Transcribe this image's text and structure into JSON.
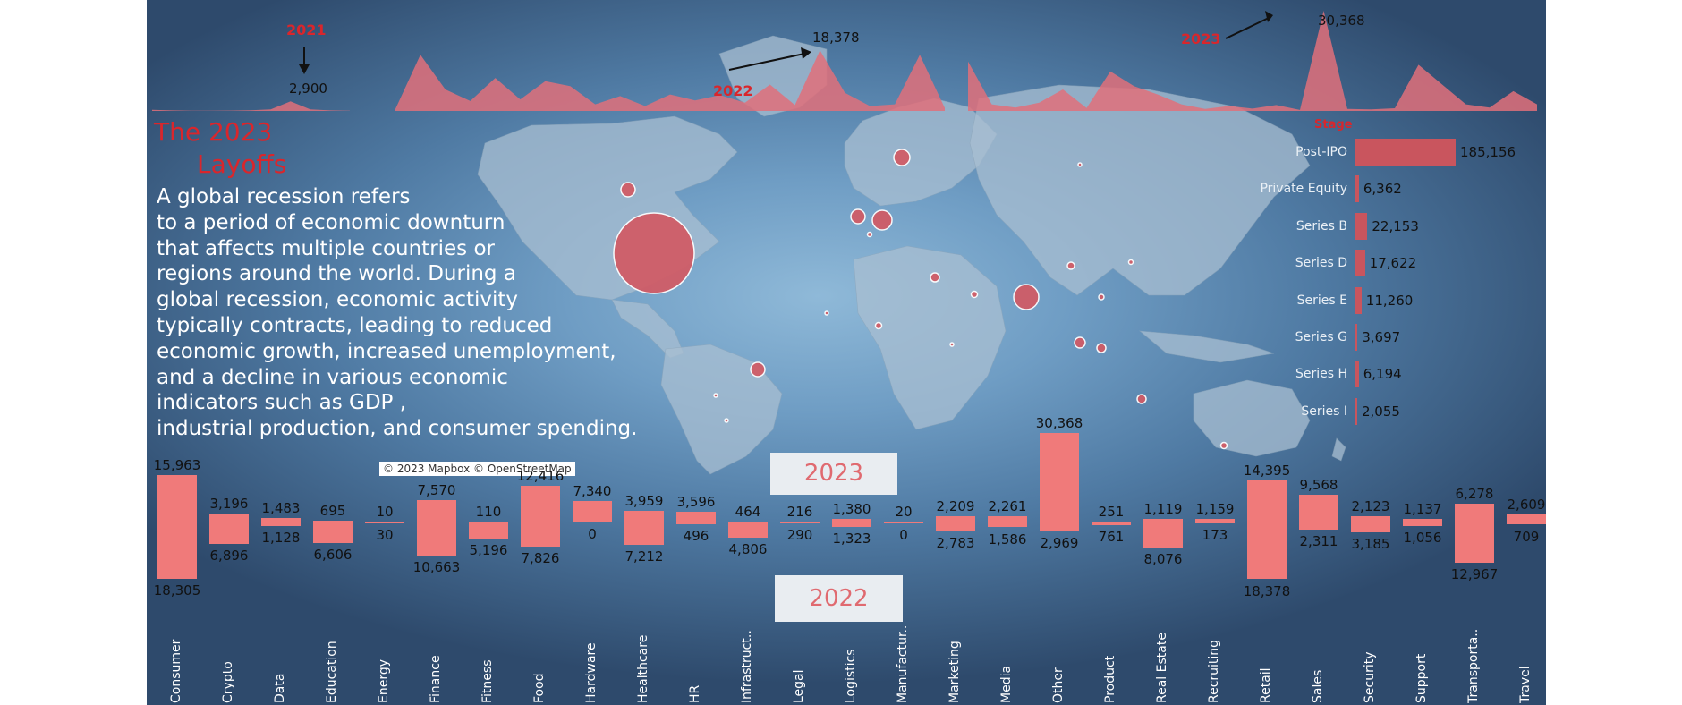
{
  "story": {
    "title_line1": "The 2023",
    "title_line2": "Layoffs",
    "body": "A global recession refers\nto a period of economic downturn\nthat affects multiple countries or\nregions around the world. During a\nglobal recession, economic activity\ntypically contracts, leading to reduced\neconomic growth, increased unemployment,\nand a decline in various economic\nindicators such as GDP ,\nindustrial production, and consumer spending."
  },
  "map": {
    "attribution": "© 2023 Mapbox © OpenStreetMap"
  },
  "timeline": {
    "annotations": {
      "y2021": {
        "year": "2021",
        "peak": "2,900"
      },
      "y2022": {
        "year": "2022",
        "peak": "18,378"
      },
      "y2023": {
        "year": "2023",
        "peak": "30,368"
      }
    }
  },
  "year_boxes": {
    "top": "2023",
    "bottom": "2022"
  },
  "colors": {
    "accent_red": "#d9262c",
    "bar_red": "#f07a7a",
    "stage_bar": "#c9555e",
    "area_fill": "#e0707a"
  },
  "chart_data": [
    {
      "type": "area",
      "segments": [
        {
          "year": "2021",
          "values": [
            350,
            150,
            80,
            60,
            120,
            200,
            450,
            2900,
            500,
            150,
            80
          ]
        },
        {
          "year": "2022",
          "values": [
            600,
            17000,
            6500,
            3000,
            10000,
            3500,
            9000,
            7500,
            2000,
            4500,
            1500,
            5000,
            3200,
            4800,
            2500,
            8000,
            1800,
            18378,
            5500,
            1500,
            2000,
            17000,
            900
          ]
        },
        {
          "year": "2023",
          "values": [
            15000,
            2000,
            1000,
            2500,
            6500,
            900,
            12000,
            7500,
            5000,
            2000,
            600,
            1500,
            700,
            1800,
            300,
            30368,
            600,
            500,
            800,
            14000,
            8000,
            2000,
            1000,
            6000,
            2000
          ]
        }
      ]
    },
    {
      "type": "bar",
      "title": "Stage",
      "categories": [
        "Post-IPO",
        "Private Equity",
        "Series B",
        "Series D",
        "Series E",
        "Series G",
        "Series H",
        "Series I"
      ],
      "values": [
        185156,
        6362,
        22153,
        17622,
        11260,
        3697,
        6194,
        2055
      ],
      "value_labels": [
        "185,156",
        "6,362",
        "22,153",
        "17,622",
        "11,260",
        "3,697",
        "6,194",
        "2,055"
      ]
    },
    {
      "type": "bar",
      "categories": [
        "Consumer",
        "Crypto",
        "Data",
        "Education",
        "Energy",
        "Finance",
        "Fitness",
        "Food",
        "Hardware",
        "Healthcare",
        "HR",
        "Infrastruct..",
        "Legal",
        "Logistics",
        "Manufactur..",
        "Marketing",
        "Media",
        "Other",
        "Product",
        "Real Estate",
        "Recruiting",
        "Retail",
        "Sales",
        "Security",
        "Support",
        "Transporta..",
        "Travel"
      ],
      "series": [
        {
          "name": "2023",
          "values": [
            15963,
            3196,
            1483,
            695,
            10,
            7570,
            110,
            12416,
            7340,
            3959,
            3596,
            464,
            216,
            1380,
            20,
            2209,
            2261,
            30368,
            251,
            1119,
            1159,
            14395,
            9568,
            2123,
            1137,
            6278,
            2609
          ],
          "labels": [
            "15,963",
            "3,196",
            "1,483",
            "695",
            "10",
            "7,570",
            "110",
            "12,416",
            "7,340",
            "3,959",
            "3,596",
            "464",
            "216",
            "1,380",
            "20",
            "2,209",
            "2,261",
            "30,368",
            "251",
            "1,119",
            "1,159",
            "14,395",
            "9,568",
            "2,123",
            "1,137",
            "6,278",
            "2,609"
          ]
        },
        {
          "name": "2022",
          "values": [
            18305,
            6896,
            1128,
            6606,
            30,
            10663,
            5196,
            7826,
            0,
            7212,
            496,
            4806,
            290,
            1323,
            0,
            2783,
            1586,
            2969,
            761,
            8076,
            173,
            18378,
            2311,
            3185,
            1056,
            12967,
            709
          ],
          "labels": [
            "18,305",
            "6,896",
            "1,128",
            "6,606",
            "30",
            "10,663",
            "5,196",
            "7,826",
            "0",
            "7,212",
            "496",
            "4,806",
            "290",
            "1,323",
            "0",
            "2,783",
            "1,586",
            "2,969",
            "761",
            "8,076",
            "173",
            "18,378",
            "2,311",
            "3,185",
            "1,056",
            "12,967",
            "709"
          ]
        }
      ]
    }
  ],
  "bubbles": [
    {
      "place": "United States",
      "value": 1.0
    },
    {
      "place": "Canada",
      "value": 0.012
    },
    {
      "place": "Brazil",
      "value": 0.01
    },
    {
      "place": "India",
      "value": 0.045
    },
    {
      "place": "Germany",
      "value": 0.02
    },
    {
      "place": "United Kingdom",
      "value": 0.011
    },
    {
      "place": "Sweden",
      "value": 0.013
    },
    {
      "place": "Singapore",
      "value": 0.006
    },
    {
      "place": "Indonesia",
      "value": 0.006
    },
    {
      "place": "Israel",
      "value": 0.004
    },
    {
      "place": "Australia",
      "value": 0.004
    },
    {
      "place": "China",
      "value": 0.003
    },
    {
      "place": "Nigeria",
      "value": 0.002
    },
    {
      "place": "UAE",
      "value": 0.002
    },
    {
      "place": "New Zealand",
      "value": 0.002
    },
    {
      "place": "Japan",
      "value": 0.001
    },
    {
      "place": "Netherlands",
      "value": 0.002
    },
    {
      "place": "Thailand",
      "value": 0.002
    }
  ]
}
